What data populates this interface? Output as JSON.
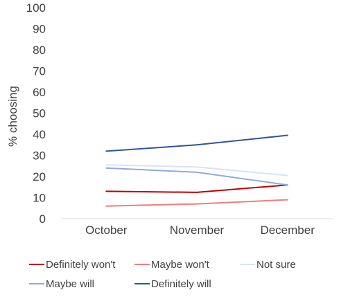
{
  "chart_data": {
    "type": "line",
    "title": "",
    "xlabel": "",
    "ylabel": "% choosing",
    "ylim": [
      0,
      100
    ],
    "yticks": [
      0,
      10,
      20,
      30,
      40,
      50,
      60,
      70,
      80,
      90,
      100
    ],
    "grid": false,
    "legend_position": "bottom",
    "categories": [
      "October",
      "November",
      "December"
    ],
    "series": [
      {
        "name": "Definitely won't",
        "color": "#c00000",
        "values": [
          13,
          12.5,
          16
        ]
      },
      {
        "name": "Maybe won't",
        "color": "#f07c7c",
        "values": [
          6,
          7,
          9
        ]
      },
      {
        "name": "Not sure",
        "color": "#d9e2f3",
        "values": [
          25.5,
          24.5,
          20.5
        ]
      },
      {
        "name": "Maybe will",
        "color": "#8faadc",
        "values": [
          24,
          22,
          16
        ]
      },
      {
        "name": "Definitely will",
        "color": "#2f5597",
        "values": [
          32,
          35,
          39.5
        ]
      }
    ]
  }
}
